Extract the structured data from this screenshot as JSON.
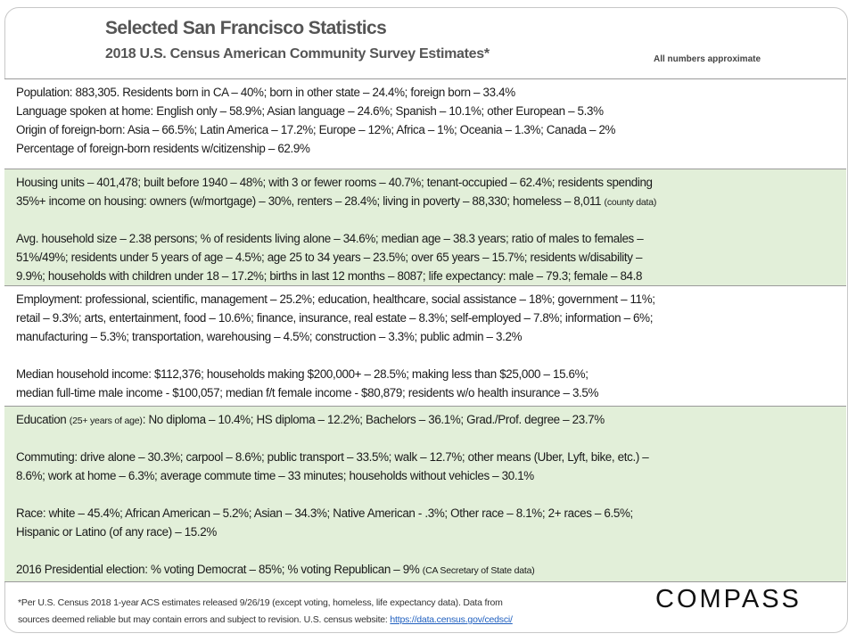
{
  "header": {
    "title": "Selected San Francisco Statistics",
    "subtitle": "2018 U.S. Census American Community Survey Estimates*",
    "note": "All numbers approximate"
  },
  "sections": [
    {
      "lines": [
        {
          "pre": "Population: 883,305. Residents born in CA – 40%; born in other state – 24.4%; foreign born – 33.4%"
        },
        {
          "pre": "Language spoken at home: English only – 58.9%;  Asian language – 24.6%; Spanish – 10.1%; other European – 5.3%"
        },
        {
          "pre": "Origin of foreign-born:  Asia – 66.5%; Latin America – 17.2%; Europe – 12%; Africa – 1%; Oceania – 1.3%; Canada – 2%"
        },
        {
          "pre": "Percentage of foreign-born  residents w/citizenship – 62.9%"
        }
      ]
    },
    {
      "lines": [
        {
          "pre": "Housing units – 401,478; built before 1940 – 48%; with 3 or fewer rooms – 40.7%; tenant-occupied  – 62.4%; residents spending"
        },
        {
          "pre": "35%+ income on housing: owners (w/mortgage) – 30%, renters – 28.4%; living in poverty – 88,330; homeless – 8,011 ",
          "small": "(county data)"
        },
        {
          "blank": true
        },
        {
          "pre": "Avg. household size – 2.38 persons; % of residents living alone – 34.6%; median age – 38.3 years; ratio of males to females –"
        },
        {
          "pre": "51%/49%; residents under 5 years of age – 4.5%; age 25 to 34 years – 23.5%; over 65 years – 15.7%; residents w/disability –"
        },
        {
          "pre": "9.9%; households with children under 18 – 17.2%; births in last 12 months – 8087; life expectancy: male – 79.3; female – 84.8"
        }
      ]
    },
    {
      "lines": [
        {
          "pre": "Employment: professional, scientific, management – 25.2%; education, healthcare, social assistance – 18%; government – 11%;"
        },
        {
          "pre": "retail – 9.3%; arts, entertainment, food – 10.6%; finance, insurance, real estate – 8.3%; self-employed – 7.8%; information  – 6%;"
        },
        {
          "pre": "manufacturing  – 5.3%; transportation,  warehousing – 4.5%; construction  – 3.3%; public admin – 3.2%"
        },
        {
          "blank": true
        },
        {
          "pre": "Median household income: $112,376; households making $200,000+ – 28.5%; making less than $25,000 – 15.6%;"
        },
        {
          "pre": "median full-time male income - $100,057; median f/t female income - $80,879; residents w/o health insurance – 3.5%"
        }
      ]
    },
    {
      "lines": [
        {
          "pre": "Education ",
          "small": "(25+ years of age)",
          "post": ": No diploma – 10.4%; HS diploma – 12.2%; Bachelors – 36.1%; Grad./Prof. degree – 23.7%"
        },
        {
          "blank": true
        },
        {
          "pre": "Commuting: drive alone – 30.3%; carpool – 8.6%; public transport – 33.5%; walk – 12.7%; other means (Uber, Lyft, bike, etc.) –"
        },
        {
          "pre": "8.6%; work at home – 6.3%; average commute time – 33 minutes; households without vehicles – 30.1%"
        },
        {
          "blank": true
        },
        {
          "pre": "Race: white – 45.4%; African  American – 5.2%; Asian – 34.3%; Native American - .3%; Other race – 8.1%; 2+ races – 6.5%;"
        },
        {
          "pre": "Hispanic or Latino (of any race) – 15.2%"
        },
        {
          "blank": true
        },
        {
          "pre": "2016 Presidential election: % voting Democrat – 85%; % voting Republican – 9% ",
          "small": "(CA Secretary of State data)"
        }
      ]
    }
  ],
  "footer": {
    "line1": "*Per U.S. Census 2018 1-year ACS estimates released 9/26/19 (except voting, homeless, life expectancy data). Data from",
    "line2": "sources deemed reliable but may contain  errors and subject to revision.  U.S. census website: ",
    "link": "https://data.census.gov/cedsci/",
    "logo": "COMPASS"
  }
}
